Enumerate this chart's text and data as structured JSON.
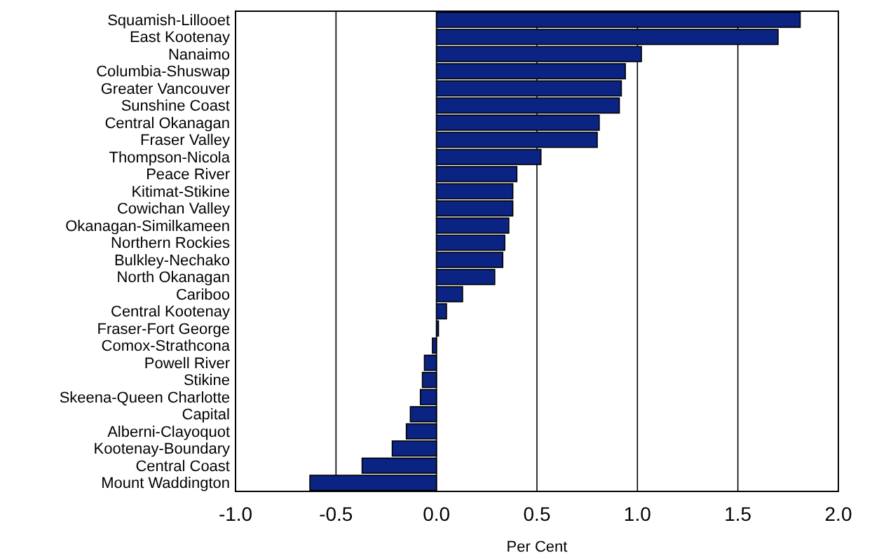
{
  "chart_data": {
    "type": "bar",
    "orientation": "horizontal",
    "xlabel": "Per Cent",
    "categories": [
      "Squamish-Lillooet",
      "East Kootenay",
      "Nanaimo",
      "Columbia-Shuswap",
      "Greater Vancouver",
      "Sunshine Coast",
      "Central Okanagan",
      "Fraser Valley",
      "Thompson-Nicola",
      "Peace River",
      "Kitimat-Stikine",
      "Cowichan Valley",
      "Okanagan-Similkameen",
      "Northern Rockies",
      "Bulkley-Nechako",
      "North Okanagan",
      "Cariboo",
      "Central Kootenay",
      "Fraser-Fort George",
      "Comox-Strathcona",
      "Powell River",
      "Stikine",
      "Skeena-Queen Charlotte",
      "Capital",
      "Alberni-Clayoquot",
      "Kootenay-Boundary",
      "Central Coast",
      "Mount Waddington"
    ],
    "values": [
      1.81,
      1.7,
      1.02,
      0.94,
      0.92,
      0.91,
      0.81,
      0.8,
      0.52,
      0.4,
      0.38,
      0.38,
      0.36,
      0.34,
      0.33,
      0.29,
      0.13,
      0.05,
      0.01,
      -0.02,
      -0.06,
      -0.07,
      -0.08,
      -0.13,
      -0.15,
      -0.22,
      -0.37,
      -0.63
    ],
    "color": "#0b2383",
    "xlim": [
      -1,
      2
    ],
    "xticks": [
      {
        "value": -1,
        "label": "-1.0"
      },
      {
        "value": -0.5,
        "label": "-0.5"
      },
      {
        "value": 0,
        "label": "0.0"
      },
      {
        "value": 0.5,
        "label": "0.5"
      },
      {
        "value": 1,
        "label": "1.0"
      },
      {
        "value": 1.5,
        "label": "1.5"
      },
      {
        "value": 2,
        "label": "2.0"
      }
    ],
    "grid": "x"
  }
}
